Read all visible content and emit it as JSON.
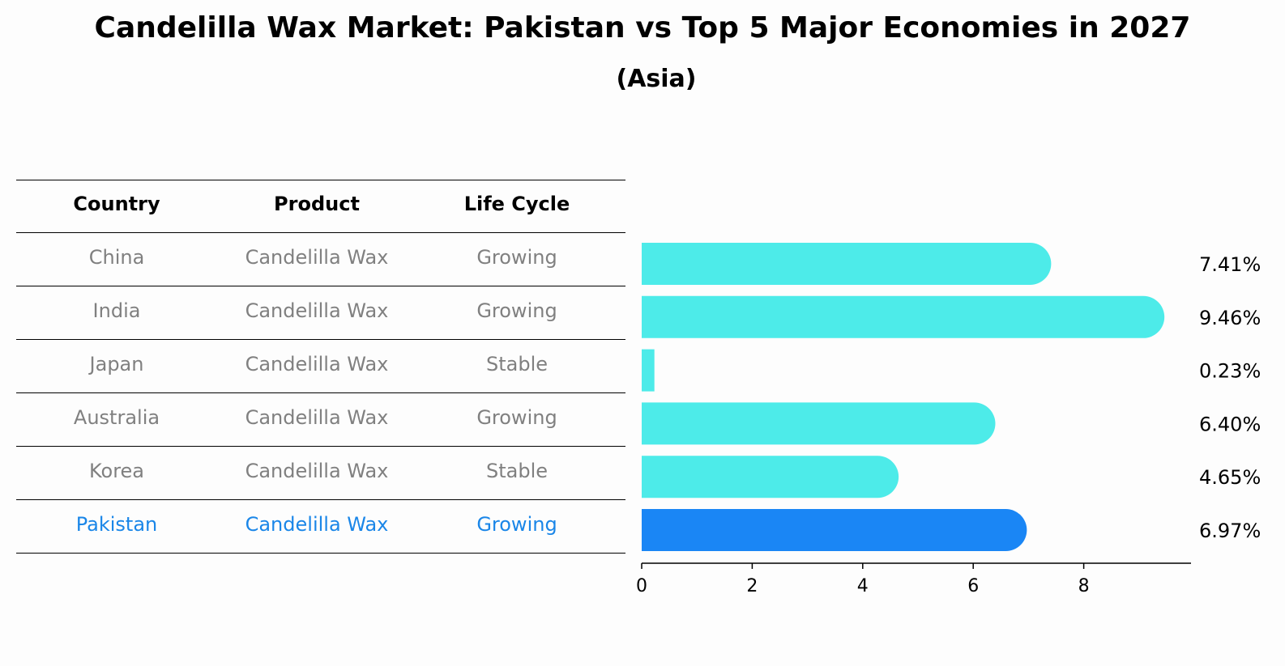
{
  "chart_data": {
    "type": "bar",
    "orientation": "horizontal",
    "title": "Candelilla Wax Market: Pakistan vs Top 5 Major Economies in 2027",
    "subtitle": "(Asia)",
    "table": {
      "headers": [
        "Country",
        "Product",
        "Life Cycle"
      ],
      "rows": [
        {
          "country": "China",
          "product": "Candelilla Wax",
          "lifecycle": "Growing"
        },
        {
          "country": "India",
          "product": "Candelilla Wax",
          "lifecycle": "Growing"
        },
        {
          "country": "Japan",
          "product": "Candelilla Wax",
          "lifecycle": "Stable"
        },
        {
          "country": "Australia",
          "product": "Candelilla Wax",
          "lifecycle": "Growing"
        },
        {
          "country": "Korea",
          "product": "Candelilla Wax",
          "lifecycle": "Stable"
        },
        {
          "country": "Pakistan",
          "product": "Candelilla Wax",
          "lifecycle": "Growing"
        }
      ]
    },
    "categories": [
      "China",
      "India",
      "Japan",
      "Australia",
      "Korea",
      "Pakistan"
    ],
    "values": [
      7.41,
      9.46,
      0.23,
      6.4,
      4.65,
      6.97
    ],
    "value_labels": [
      "7.41%",
      "9.46%",
      "0.23%",
      "6.40%",
      "4.65%",
      "6.97%"
    ],
    "highlight": "Pakistan",
    "xlim": [
      0,
      10
    ],
    "xticks": [
      0,
      2,
      4,
      6,
      8
    ],
    "colors": {
      "bar": "#4debe9",
      "highlight_bar": "#1a86f5",
      "highlight_text": "#1a86e8",
      "row_text": "#808080"
    }
  }
}
